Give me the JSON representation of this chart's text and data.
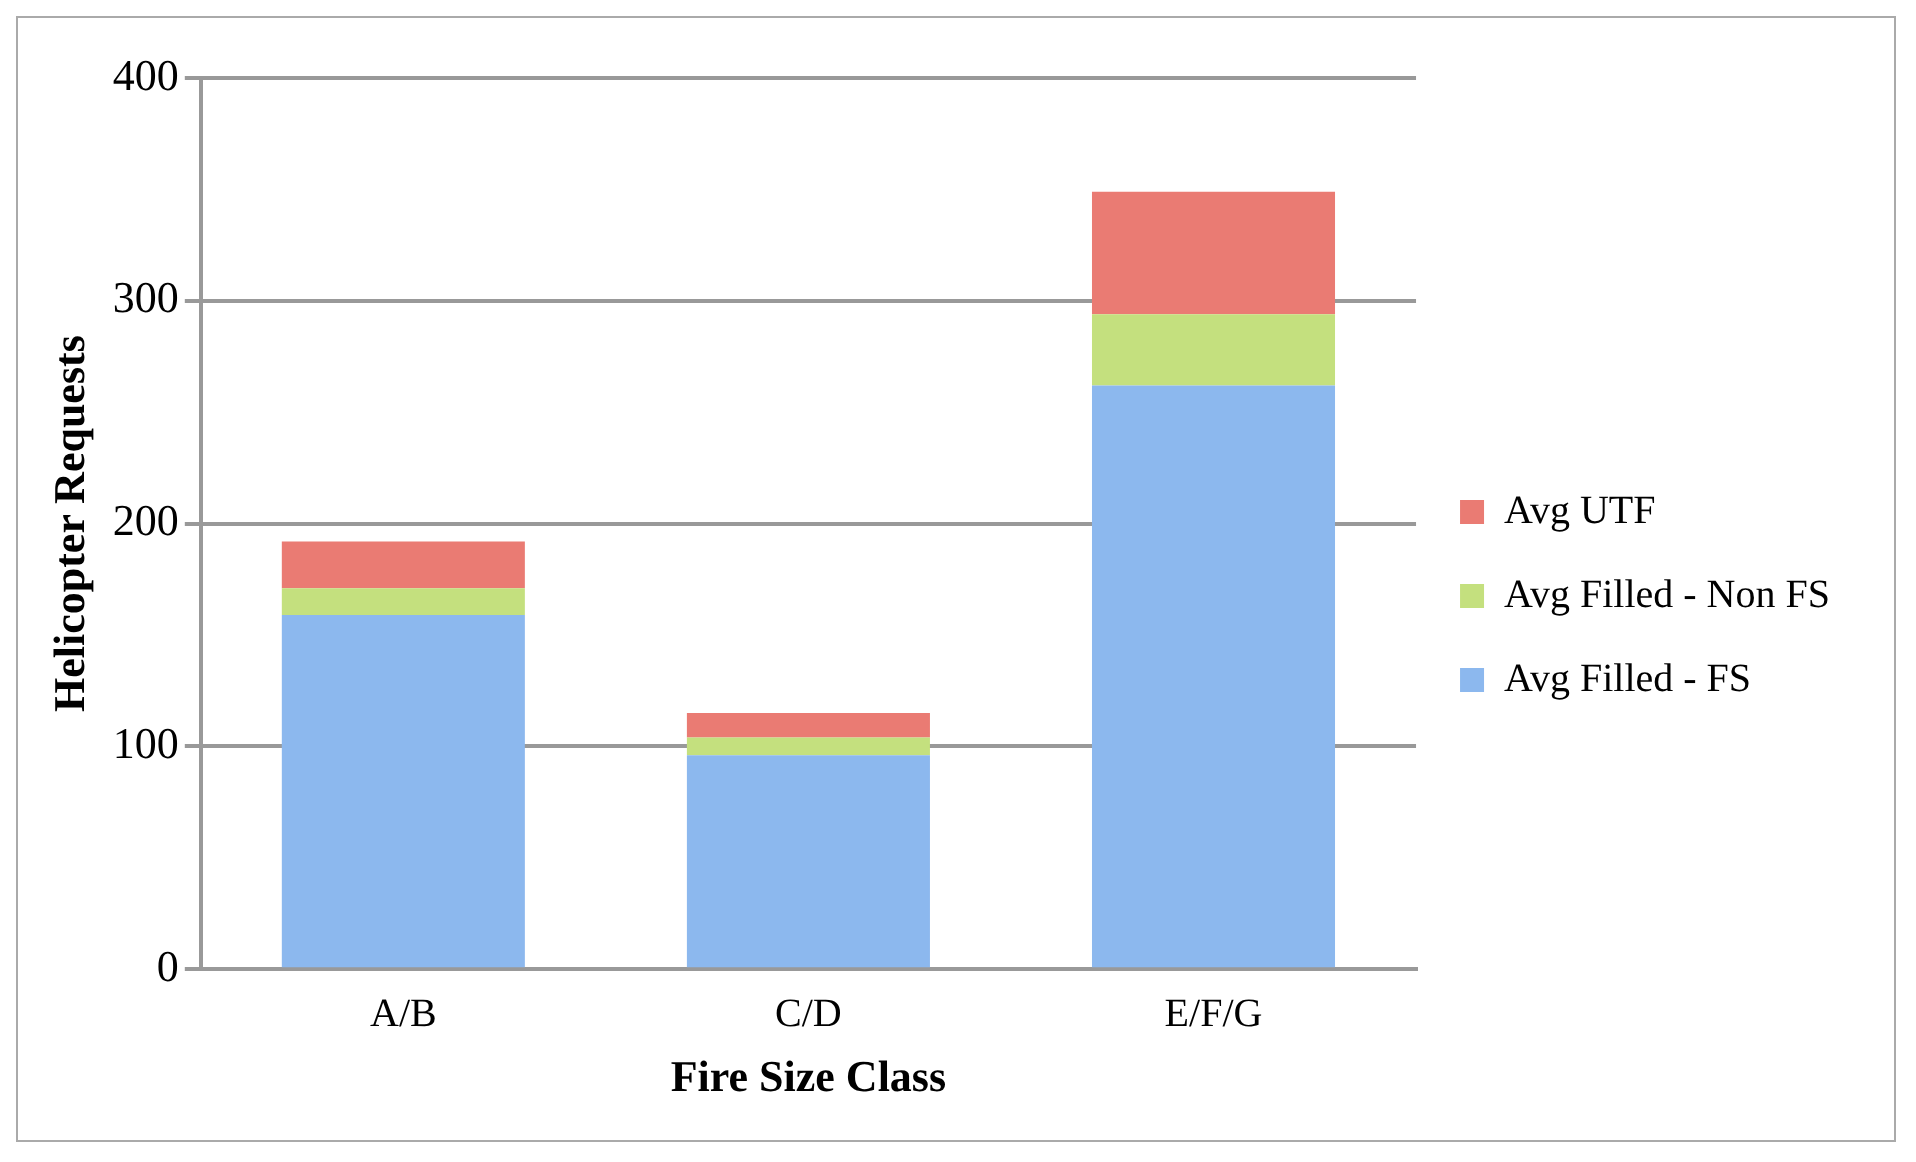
{
  "chart_data": {
    "type": "bar",
    "stacked": true,
    "xlabel": "Fire Size Class",
    "ylabel": "Helicopter Requests",
    "categories": [
      "A/B",
      "C/D",
      "E/F/G"
    ],
    "series": [
      {
        "name": "Avg Filled - FS",
        "color": "#8cb8ee",
        "values": [
          159,
          96,
          262
        ]
      },
      {
        "name": "Avg Filled - Non FS",
        "color": "#c4e07e",
        "values": [
          12,
          8,
          32
        ]
      },
      {
        "name": "Avg UTF",
        "color": "#ea7b73",
        "values": [
          21,
          11,
          55
        ]
      }
    ],
    "ylim": [
      0,
      400
    ],
    "yticks": [
      0,
      100,
      200,
      300,
      400
    ],
    "grid": "y",
    "legend": "right"
  }
}
